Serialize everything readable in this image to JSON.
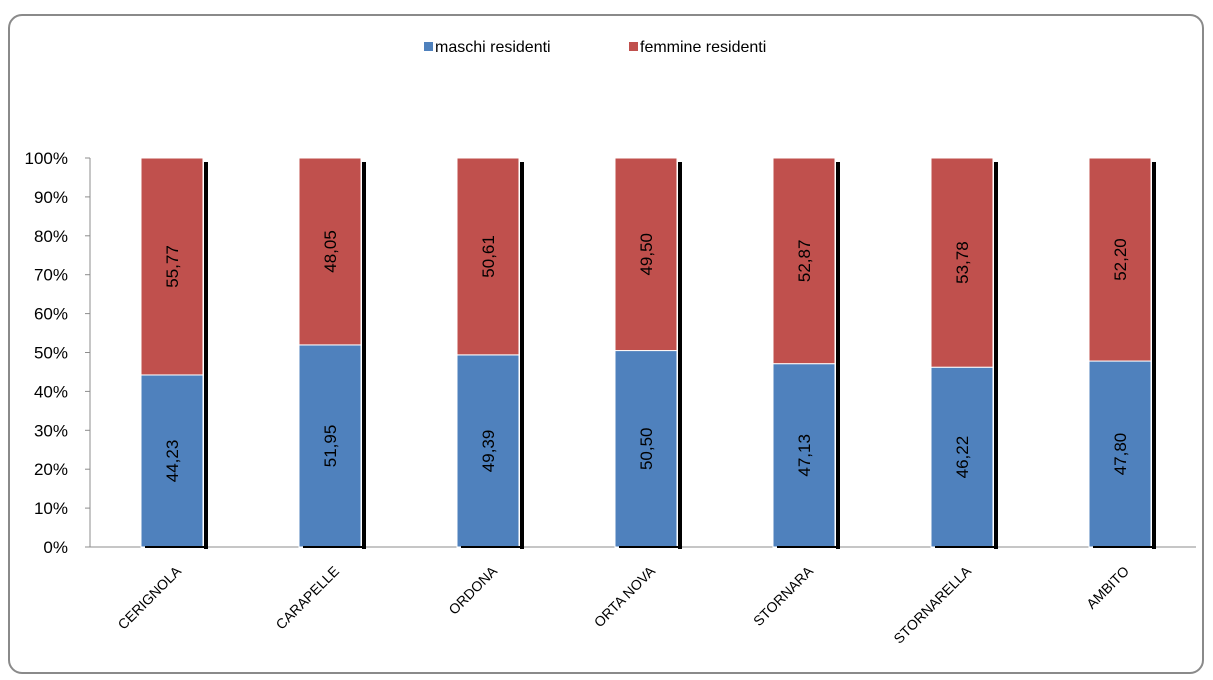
{
  "header": {
    "text": ""
  },
  "chart_data": {
    "type": "bar",
    "stacked": true,
    "percent": true,
    "title": "",
    "xlabel": "",
    "ylabel": "",
    "categories": [
      "CERIGNOLA",
      "CARAPELLE",
      "ORDONA",
      "ORTA NOVA",
      "STORNARA",
      "STORNARELLA",
      "AMBITO"
    ],
    "series": [
      {
        "name": "maschi residenti",
        "color": "#4f81bd",
        "values": [
          44.23,
          51.95,
          49.39,
          50.5,
          47.13,
          46.22,
          47.8
        ],
        "labels": [
          "44,23",
          "51,95",
          "49,39",
          "50,50",
          "47,13",
          "46,22",
          "47,80"
        ]
      },
      {
        "name": "femmine residenti",
        "color": "#c0504d",
        "values": [
          55.77,
          48.05,
          50.61,
          49.5,
          52.87,
          53.78,
          52.2
        ],
        "labels": [
          "55,77",
          "48,05",
          "50,61",
          "49,50",
          "52,87",
          "53,78",
          "52,20"
        ]
      }
    ],
    "yticks": [
      "0%",
      "10%",
      "20%",
      "30%",
      "40%",
      "50%",
      "60%",
      "70%",
      "80%",
      "90%",
      "100%"
    ],
    "ylim": [
      0,
      100
    ],
    "grid": false,
    "legend_position": "top-center"
  }
}
